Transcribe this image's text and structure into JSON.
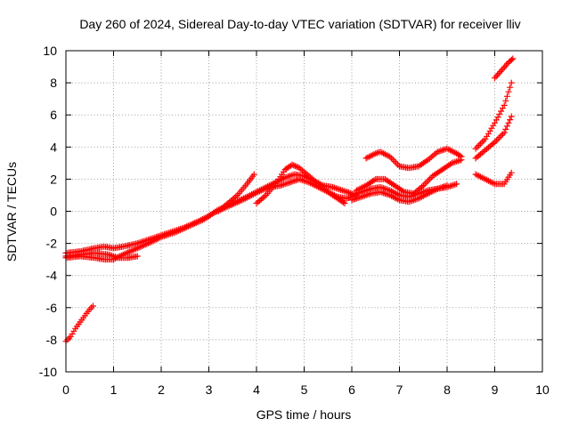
{
  "chart_data": {
    "type": "scatter",
    "title": "Day 260 of 2024, Sidereal Day-to-day VTEC variation (SDTVAR) for receiver lliv",
    "xlabel": "GPS time / hours",
    "ylabel": "SDTVAR / TECUs",
    "xlim": [
      0,
      10
    ],
    "ylim": [
      -10,
      10
    ],
    "xticks": [
      0,
      1,
      2,
      3,
      4,
      5,
      6,
      7,
      8,
      9,
      10
    ],
    "yticks": [
      -10,
      -8,
      -6,
      -4,
      -2,
      0,
      2,
      4,
      6,
      8,
      10
    ],
    "grid": true,
    "marker": "plus",
    "color": "#ff0000",
    "series": [
      {
        "points": [
          [
            0,
            -8.1
          ],
          [
            0.1,
            -7.8
          ],
          [
            0.2,
            -7.3
          ],
          [
            0.3,
            -6.9
          ],
          [
            0.4,
            -6.5
          ],
          [
            0.5,
            -6.1
          ],
          [
            0.57,
            -5.9
          ]
        ]
      },
      {
        "points": [
          [
            0,
            -2.6
          ],
          [
            0.3,
            -2.5
          ],
          [
            0.6,
            -2.3
          ],
          [
            0.8,
            -2.2
          ],
          [
            1.0,
            -2.3
          ],
          [
            1.2,
            -2.2
          ],
          [
            1.5,
            -2.0
          ],
          [
            1.8,
            -1.7
          ],
          [
            2.1,
            -1.4
          ],
          [
            2.5,
            -1.0
          ],
          [
            2.8,
            -0.6
          ],
          [
            3.0,
            -0.3
          ],
          [
            3.2,
            0.1
          ],
          [
            3.5,
            0.5
          ],
          [
            3.8,
            0.9
          ],
          [
            4.0,
            1.2
          ],
          [
            4.2,
            1.5
          ],
          [
            4.4,
            1.8
          ],
          [
            4.6,
            2.1
          ],
          [
            4.8,
            2.3
          ],
          [
            5.0,
            2.2
          ],
          [
            5.2,
            1.9
          ],
          [
            5.4,
            1.6
          ],
          [
            5.6,
            1.5
          ],
          [
            5.8,
            1.3
          ],
          [
            6.0,
            1.1
          ],
          [
            6.1,
            1.0
          ]
        ]
      },
      {
        "points": [
          [
            0,
            -2.8
          ],
          [
            0.3,
            -2.7
          ],
          [
            0.6,
            -2.6
          ],
          [
            0.9,
            -2.7
          ],
          [
            1.1,
            -2.9
          ],
          [
            1.3,
            -2.9
          ],
          [
            1.5,
            -2.8
          ]
        ]
      },
      {
        "points": [
          [
            0,
            -2.9
          ],
          [
            0.3,
            -2.8
          ],
          [
            0.6,
            -2.9
          ],
          [
            0.8,
            -3.0
          ],
          [
            1.0,
            -3.0
          ],
          [
            1.2,
            -2.7
          ],
          [
            1.5,
            -2.3
          ],
          [
            1.8,
            -1.9
          ],
          [
            2.0,
            -1.6
          ],
          [
            2.3,
            -1.3
          ],
          [
            2.6,
            -0.9
          ],
          [
            2.9,
            -0.5
          ],
          [
            3.1,
            -0.1
          ],
          [
            3.4,
            0.3
          ],
          [
            3.7,
            0.7
          ],
          [
            3.9,
            1.0
          ],
          [
            4.1,
            1.3
          ],
          [
            4.3,
            1.5
          ],
          [
            4.5,
            1.6
          ],
          [
            4.7,
            1.8
          ],
          [
            4.9,
            2.0
          ],
          [
            5.1,
            1.8
          ],
          [
            5.3,
            1.5
          ],
          [
            5.5,
            1.2
          ],
          [
            5.7,
            0.8
          ],
          [
            5.85,
            0.5
          ]
        ]
      },
      {
        "points": [
          [
            3.2,
            0.0
          ],
          [
            3.4,
            0.5
          ],
          [
            3.6,
            1.0
          ],
          [
            3.8,
            1.7
          ],
          [
            3.95,
            2.3
          ]
        ]
      },
      {
        "points": [
          [
            4.0,
            0.5
          ],
          [
            4.2,
            1.0
          ],
          [
            4.4,
            1.7
          ],
          [
            4.6,
            2.6
          ],
          [
            4.75,
            2.9
          ],
          [
            4.9,
            2.7
          ],
          [
            5.1,
            2.2
          ],
          [
            5.3,
            1.7
          ],
          [
            5.5,
            1.2
          ],
          [
            5.7,
            0.9
          ],
          [
            5.9,
            0.8
          ],
          [
            6.1,
            1.0
          ]
        ]
      },
      {
        "points": [
          [
            6.0,
            1.0
          ],
          [
            6.2,
            1.2
          ],
          [
            6.4,
            1.4
          ],
          [
            6.6,
            1.5
          ],
          [
            6.8,
            1.3
          ],
          [
            7.0,
            1.0
          ],
          [
            7.2,
            0.9
          ],
          [
            7.4,
            1.1
          ],
          [
            7.6,
            1.3
          ],
          [
            7.8,
            1.4
          ],
          [
            8.0,
            1.5
          ],
          [
            8.2,
            1.7
          ]
        ]
      },
      {
        "points": [
          [
            6.0,
            0.7
          ],
          [
            6.2,
            0.9
          ],
          [
            6.4,
            1.1
          ],
          [
            6.6,
            1.2
          ],
          [
            6.8,
            1.0
          ],
          [
            7.0,
            0.7
          ],
          [
            7.2,
            0.6
          ],
          [
            7.4,
            0.8
          ],
          [
            7.6,
            1.1
          ],
          [
            7.8,
            1.4
          ],
          [
            8.0,
            1.6
          ]
        ]
      },
      {
        "points": [
          [
            6.1,
            1.3
          ],
          [
            6.3,
            1.6
          ],
          [
            6.5,
            2.0
          ],
          [
            6.7,
            2.0
          ],
          [
            6.9,
            1.6
          ],
          [
            7.1,
            1.2
          ],
          [
            7.3,
            1.1
          ],
          [
            7.5,
            1.6
          ],
          [
            7.7,
            2.2
          ],
          [
            7.9,
            2.6
          ],
          [
            8.1,
            3.0
          ],
          [
            8.3,
            3.2
          ]
        ]
      },
      {
        "points": [
          [
            6.3,
            3.3
          ],
          [
            6.5,
            3.6
          ],
          [
            6.6,
            3.7
          ],
          [
            6.8,
            3.4
          ],
          [
            7.0,
            2.8
          ],
          [
            7.2,
            2.7
          ],
          [
            7.4,
            2.8
          ],
          [
            7.6,
            3.2
          ],
          [
            7.8,
            3.7
          ],
          [
            8.0,
            3.9
          ],
          [
            8.2,
            3.6
          ],
          [
            8.3,
            3.4
          ]
        ]
      },
      {
        "points": [
          [
            8.6,
            2.3
          ],
          [
            8.8,
            2.0
          ],
          [
            9.0,
            1.7
          ],
          [
            9.2,
            1.7
          ],
          [
            9.35,
            2.4
          ]
        ]
      },
      {
        "points": [
          [
            8.6,
            3.3
          ],
          [
            8.8,
            3.8
          ],
          [
            9.0,
            4.3
          ],
          [
            9.2,
            4.9
          ],
          [
            9.35,
            5.9
          ]
        ]
      },
      {
        "points": [
          [
            8.6,
            3.9
          ],
          [
            8.8,
            4.5
          ],
          [
            9.0,
            5.5
          ],
          [
            9.2,
            6.6
          ],
          [
            9.35,
            8.0
          ]
        ]
      },
      {
        "points": [
          [
            9.0,
            8.3
          ],
          [
            9.15,
            8.8
          ],
          [
            9.3,
            9.3
          ],
          [
            9.38,
            9.5
          ]
        ]
      }
    ]
  }
}
